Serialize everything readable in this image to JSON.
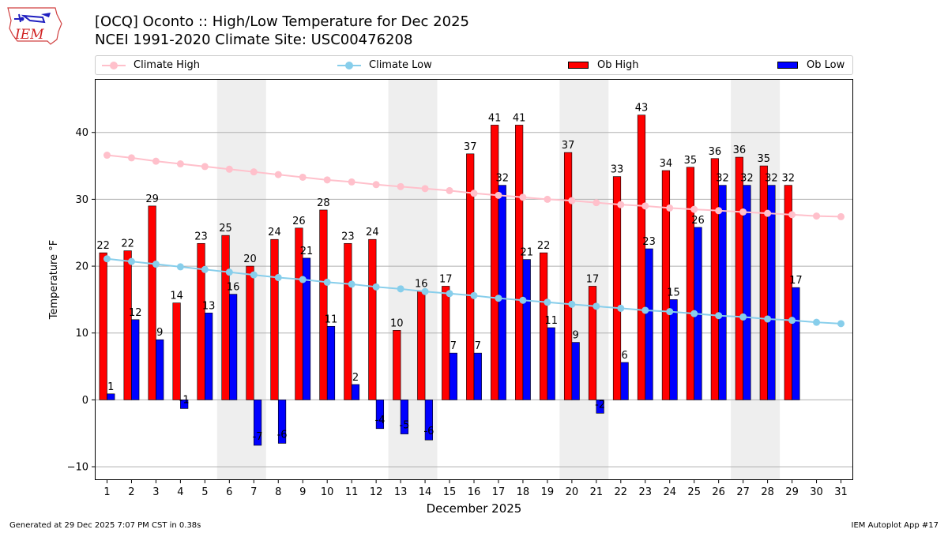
{
  "header": {
    "title_line1": "[OCQ] Oconto :: High/Low Temperature for Dec 2025",
    "title_line2": "NCEI 1991-2020 Climate Site: USC00476208",
    "logo_text": "IEM"
  },
  "footer": {
    "generated": "Generated at 29 Dec 2025 7:07 PM CST in 0.38s",
    "app": "IEM Autoplot App #17"
  },
  "colors": {
    "climate_high": "#ffc0cb",
    "climate_low": "#87ceeb",
    "ob_high": "#ff0000",
    "ob_low": "#0000ff",
    "weekend_shade": "#eeeeee",
    "grid": "#b0b0b0"
  },
  "chart_data": {
    "type": "bar",
    "xlabel": "December 2025",
    "ylabel": "Temperature °F",
    "xlim": [
      0.5,
      31.5
    ],
    "ylim": [
      -12,
      48
    ],
    "yticks": [
      -10,
      0,
      10,
      20,
      30,
      40
    ],
    "grid": "horizontal",
    "legend_position": "top",
    "days": [
      1,
      2,
      3,
      4,
      5,
      6,
      7,
      8,
      9,
      10,
      11,
      12,
      13,
      14,
      15,
      16,
      17,
      18,
      19,
      20,
      21,
      22,
      23,
      24,
      25,
      26,
      27,
      28,
      29,
      30,
      31
    ],
    "shaded_days": [
      [
        6,
        7
      ],
      [
        13,
        14
      ],
      [
        20,
        21
      ],
      [
        27,
        28
      ]
    ],
    "series": [
      {
        "name": "Climate High",
        "kind": "line",
        "values": [
          36.6,
          36.2,
          35.7,
          35.3,
          34.9,
          34.5,
          34.1,
          33.7,
          33.3,
          32.9,
          32.6,
          32.2,
          31.9,
          31.6,
          31.3,
          30.9,
          30.6,
          30.3,
          30.0,
          29.8,
          29.5,
          29.2,
          29.0,
          28.7,
          28.5,
          28.3,
          28.1,
          27.9,
          27.7,
          27.5,
          27.4
        ]
      },
      {
        "name": "Climate Low",
        "kind": "line",
        "values": [
          21.1,
          20.7,
          20.3,
          19.9,
          19.5,
          19.1,
          18.7,
          18.3,
          18.0,
          17.6,
          17.3,
          16.9,
          16.6,
          16.2,
          15.9,
          15.6,
          15.2,
          14.9,
          14.6,
          14.3,
          14.0,
          13.7,
          13.4,
          13.2,
          12.9,
          12.6,
          12.4,
          12.1,
          11.9,
          11.6,
          11.4
        ]
      },
      {
        "name": "Ob High",
        "kind": "bar",
        "values": [
          22,
          22,
          29,
          14,
          23,
          25,
          20,
          24,
          26,
          28,
          23,
          24,
          10,
          16,
          17,
          37,
          41,
          41,
          22,
          37,
          17,
          33,
          43,
          34,
          35,
          36,
          36,
          35,
          32,
          null,
          null
        ],
        "plotted": [
          22,
          22.3,
          29,
          14.5,
          23.4,
          24.6,
          20,
          24,
          25.7,
          28.4,
          23.4,
          24,
          10.4,
          16.3,
          17,
          36.8,
          41.1,
          41.1,
          22,
          37,
          17,
          33.4,
          42.6,
          34.3,
          34.8,
          36.1,
          36.3,
          35,
          32.1,
          null,
          null
        ]
      },
      {
        "name": "Ob Low",
        "kind": "bar",
        "values": [
          1,
          12,
          9,
          -1,
          13,
          16,
          -7,
          -6,
          21,
          11,
          2,
          -4,
          -5,
          -6,
          7,
          7,
          32,
          21,
          11,
          9,
          -2,
          6,
          23,
          15,
          26,
          32,
          32,
          32,
          17,
          null,
          null
        ],
        "plotted": [
          0.9,
          12,
          9,
          -1.3,
          13,
          15.8,
          -6.8,
          -6.5,
          21.2,
          11,
          2.3,
          -4.3,
          -5.1,
          -6,
          7,
          7,
          32.1,
          21,
          10.8,
          8.6,
          -2,
          5.6,
          22.6,
          15,
          25.8,
          32.1,
          32.1,
          32.1,
          16.8,
          null,
          null
        ]
      }
    ]
  }
}
